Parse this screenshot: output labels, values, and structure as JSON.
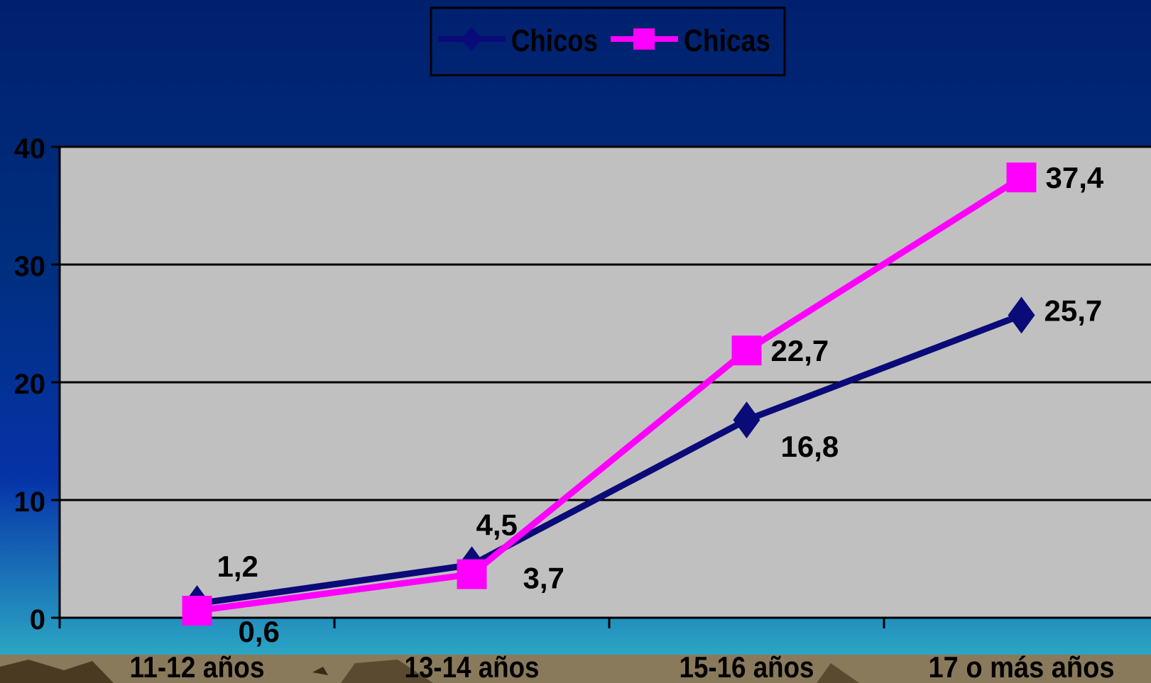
{
  "chart_data": {
    "type": "line",
    "categories": [
      "11-12 años",
      "13-14 años",
      "15-16 años",
      "17 o más años"
    ],
    "series": [
      {
        "name": "Chicos",
        "values": [
          1.2,
          4.5,
          16.8,
          25.7
        ],
        "labels": [
          "1,2",
          "4,5",
          "16,8",
          "25,7"
        ],
        "color": "#0a0a78",
        "marker": "diamond"
      },
      {
        "name": "Chicas",
        "values": [
          0.6,
          3.7,
          22.7,
          37.4
        ],
        "labels": [
          "0,6",
          "3,7",
          "22,7",
          "37,4"
        ],
        "color": "#ff00ff",
        "marker": "square"
      }
    ],
    "yticks": [
      "0",
      "10",
      "20",
      "30",
      "40"
    ],
    "ylim": [
      0,
      40
    ],
    "grid": true,
    "legend_position": "top-center",
    "title": "",
    "xlabel": "",
    "ylabel": ""
  },
  "colors": {
    "background_top": "#00206e",
    "background_mid": "#0533a8",
    "background_bottom": "#31b8c8",
    "plot_area": "#c0c0c0",
    "gridline": "#000000",
    "text": "#000000",
    "ground": "#8a7a5c"
  }
}
